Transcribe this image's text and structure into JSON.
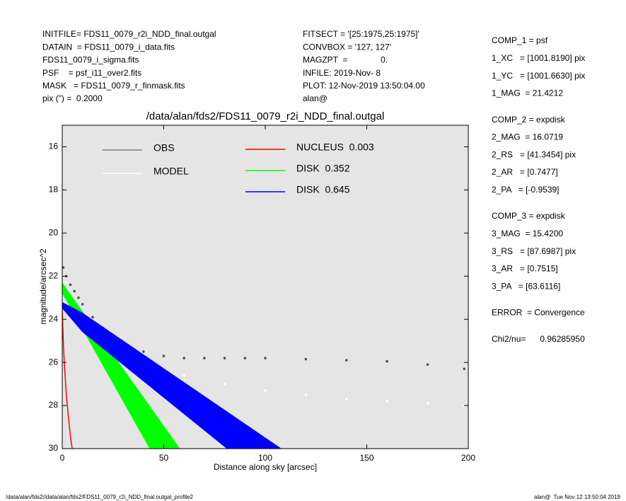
{
  "header": {
    "left": [
      "INITFILE= FDS11_0079_r2i_NDD_final.outgal",
      "DATAIN  = FDS11_0079_i_data.fits",
      "FDS11_0079_i_sigma.fits",
      "PSF    = psf_i11_over2.fits",
      "MASK   = FDS11_0079_r_finmask.fits",
      "pix (\") =  0.2000"
    ],
    "middle": [
      "FITSECT = '[25:1975,25:1975]'",
      "CONVBOX = '127, 127'",
      "MAGZPT  =              0.",
      "INFILE: 2019-Nov- 8",
      "PLOT: 12-Nov-2019 13:50:04.00",
      "alan@"
    ],
    "right": [
      [
        "COMP_1 = psf",
        "1_XC   = [1001.8190] pix",
        "1_YC   = [1001.6630] pix",
        "1_MAG  = 21.4212"
      ],
      [
        "COMP_2 = expdisk",
        "2_MAG  = 16.0719",
        "2_RS   = [41.3454] pix",
        "2_AR   = [0.7477]",
        "2_PA   = [-0.9539]"
      ],
      [
        "COMP_3 = expdisk",
        "3_MAG  = 15.4200",
        "3_RS   = [87.6987] pix",
        "3_AR   = [0.7515]",
        "3_PA   = [63.6116]"
      ],
      [
        "ERROR  = Convergence"
      ],
      [
        "Chi2/nu=      0.96285950"
      ]
    ]
  },
  "chart_data": {
    "type": "profile",
    "title": "/data/alan/fds2/FDS11_0079_r2i_NDD_final.outgal",
    "xlabel": "Distance along sky [arcsec]",
    "ylabel": "magnitude/arcsec^2",
    "xlim": [
      0,
      200
    ],
    "xticks": [
      0,
      50,
      100,
      150,
      200
    ],
    "ylim": [
      30,
      15
    ],
    "yticks": [
      16,
      18,
      20,
      22,
      24,
      26,
      28,
      30
    ],
    "series": [
      {
        "name": "OBS",
        "kind": "scatter",
        "color": "#505050",
        "legend_color": "#808080",
        "x": [
          0.5,
          2,
          4,
          6,
          8,
          10,
          15,
          20,
          25,
          30,
          40,
          50,
          60,
          70,
          80,
          90,
          100,
          120,
          140,
          160,
          180,
          198
        ],
        "values": [
          21.6,
          22,
          22.4,
          22.7,
          23,
          23.3,
          23.9,
          24.4,
          24.8,
          25.1,
          25.5,
          25.7,
          25.8,
          25.8,
          25.8,
          25.8,
          25.8,
          25.85,
          25.9,
          25.95,
          26.1,
          26.3
        ]
      },
      {
        "name": "MODEL",
        "kind": "scatter",
        "color": "#ffffff",
        "legend_color": "#ffffff",
        "x": [
          2,
          5,
          10,
          15,
          20,
          30,
          40,
          50,
          60,
          80,
          100,
          120,
          140,
          160,
          180,
          198
        ],
        "values": [
          22.3,
          22.8,
          23.5,
          24.1,
          24.6,
          25.3,
          25.9,
          26.3,
          26.6,
          27,
          27.3,
          27.5,
          27.7,
          27.8,
          27.9,
          28
        ]
      },
      {
        "name": "NUCLEUS  0.003",
        "kind": "line",
        "color": "#ff0000",
        "x": [
          0,
          0.5,
          1,
          2,
          3,
          4,
          4.9
        ],
        "values": [
          23.5,
          25,
          26,
          27.5,
          28.5,
          29.4,
          30
        ]
      },
      {
        "name": "DISK  0.352",
        "kind": "band",
        "color": "#00ff00",
        "bounds": [
          {
            "x": [
              0,
              58
            ],
            "values": [
              22.3,
              30
            ]
          },
          {
            "x": [
              0,
              43
            ],
            "values": [
              22.8,
              30
            ]
          }
        ]
      },
      {
        "name": "DISK  0.645",
        "kind": "band",
        "color": "#0000ff",
        "bounds": [
          {
            "x": [
              0,
              10,
              108
            ],
            "values": [
              23.2,
              23.7,
              30
            ]
          },
          {
            "x": [
              0,
              10,
              81
            ],
            "values": [
              23.5,
              24.6,
              30
            ]
          }
        ]
      }
    ]
  },
  "footer": {
    "left": "/data/alan/fds2//data/alan/fds2/FDS11_0079_r2i_NDD_final.outgal_profile2",
    "right": "alan@  Tue Nov 12 13:50:04 2019"
  }
}
